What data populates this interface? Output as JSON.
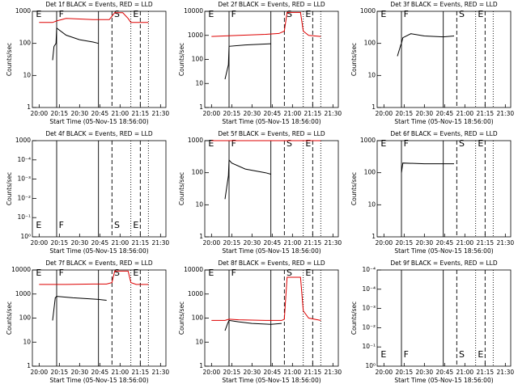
{
  "chart_data": [
    {
      "type": "line",
      "title": "Det 1f BLACK = Events, RED = LLD",
      "x_label": "Start Time (05-Nov-15 18:56:00)",
      "y_label": "Counts/sec",
      "log_y": true,
      "flag_position": "top",
      "xlim": [
        -5,
        94
      ],
      "ylim": [
        1,
        1000
      ],
      "xticks": [
        {
          "value": 0,
          "label": "20:00"
        },
        {
          "value": 15,
          "label": "20:15"
        },
        {
          "value": 30,
          "label": "20:30"
        },
        {
          "value": 45,
          "label": "20:45"
        },
        {
          "value": 60,
          "label": "21:00"
        },
        {
          "value": 75,
          "label": "21:15"
        },
        {
          "value": 90,
          "label": "21:30"
        }
      ],
      "yticks": [
        1,
        10,
        100,
        1000
      ],
      "series": [
        {
          "name": "Events",
          "color": "#000000",
          "x": [
            10,
            11,
            12.5,
            13,
            20,
            30,
            40,
            44
          ],
          "values": [
            30,
            80,
            100,
            300,
            180,
            130,
            110,
            100
          ]
        },
        {
          "name": "LLD",
          "color": "#dd0000",
          "x": [
            0,
            10,
            13,
            20,
            40,
            52,
            54,
            56,
            62,
            66,
            68,
            72,
            81
          ],
          "values": [
            450,
            450,
            500,
            600,
            550,
            550,
            700,
            900,
            900,
            600,
            450,
            450,
            450
          ]
        }
      ]
    },
    {
      "type": "line",
      "title": "Det 2f BLACK = Events, RED = LLD",
      "x_label": "Start Time (05-Nov-15 18:56:00)",
      "y_label": "Counts/sec",
      "log_y": true,
      "flag_position": "top",
      "xlim": [
        -5,
        94
      ],
      "ylim": [
        1,
        10000
      ],
      "xticks": [
        {
          "value": 0,
          "label": "20:00"
        },
        {
          "value": 15,
          "label": "20:15"
        },
        {
          "value": 30,
          "label": "20:30"
        },
        {
          "value": 45,
          "label": "20:45"
        },
        {
          "value": 60,
          "label": "21:00"
        },
        {
          "value": 75,
          "label": "21:15"
        },
        {
          "value": 90,
          "label": "21:30"
        }
      ],
      "yticks": [
        1,
        10,
        100,
        1000,
        10000
      ],
      "series": [
        {
          "name": "Events",
          "color": "#000000",
          "x": [
            10,
            12.5,
            13,
            25,
            44
          ],
          "values": [
            15,
            60,
            350,
            400,
            450
          ]
        },
        {
          "name": "LLD",
          "color": "#dd0000",
          "x": [
            0,
            20,
            40,
            50,
            54,
            56,
            62,
            66,
            68,
            72,
            81
          ],
          "values": [
            900,
            1000,
            1100,
            1200,
            1500,
            9000,
            9000,
            9000,
            1500,
            1000,
            900
          ]
        }
      ]
    },
    {
      "type": "line",
      "title": "Det 3f BLACK = Events, RED = LLD",
      "x_label": "Start Time (05-Nov-15 18:56:00)",
      "y_label": "Counts/sec",
      "log_y": true,
      "flag_position": "top",
      "xlim": [
        -5,
        94
      ],
      "ylim": [
        1,
        1000
      ],
      "xticks": [
        {
          "value": 0,
          "label": "20:00"
        },
        {
          "value": 15,
          "label": "20:15"
        },
        {
          "value": 30,
          "label": "20:30"
        },
        {
          "value": 45,
          "label": "20:45"
        },
        {
          "value": 60,
          "label": "21:00"
        },
        {
          "value": 75,
          "label": "21:15"
        },
        {
          "value": 90,
          "label": "21:30"
        }
      ],
      "yticks": [
        1,
        10,
        100,
        1000
      ],
      "series": [
        {
          "name": "Events",
          "color": "#000000",
          "x": [
            10,
            12.5,
            13,
            14,
            20,
            30,
            44,
            52
          ],
          "values": [
            40,
            90,
            100,
            150,
            200,
            170,
            160,
            170
          ]
        }
      ]
    },
    {
      "type": "line",
      "title": "Det 4f BLACK = Events, RED = LLD",
      "x_label": "Start Time (05-Nov-15 18:56:00)",
      "y_label": "Counts/sec",
      "log_y": false,
      "flag_position": "bottom",
      "xlim": [
        -5,
        94
      ],
      "ylim": [
        0,
        5
      ],
      "xticks": [
        {
          "value": 0,
          "label": "20:00"
        },
        {
          "value": 15,
          "label": "20:15"
        },
        {
          "value": 30,
          "label": "20:30"
        },
        {
          "value": 45,
          "label": "20:45"
        },
        {
          "value": 60,
          "label": "21:00"
        },
        {
          "value": 75,
          "label": "21:15"
        },
        {
          "value": 90,
          "label": "21:30"
        }
      ],
      "yticks": [
        {
          "value": 0,
          "label": "10⁰"
        },
        {
          "value": 1,
          "label": "10⁻¹"
        },
        {
          "value": 2,
          "label": "10⁻²"
        },
        {
          "value": 3,
          "label": "10⁻³"
        },
        {
          "value": 4,
          "label": "10⁻⁴"
        },
        {
          "value": 5,
          "label": "1000"
        }
      ],
      "series": []
    },
    {
      "type": "line",
      "title": "Det 5f BLACK = Events, RED = LLD",
      "x_label": "Start Time (05-Nov-15 18:56:00)",
      "y_label": "Counts/sec",
      "log_y": true,
      "flag_position": "top",
      "xlim": [
        -5,
        94
      ],
      "ylim": [
        1,
        1000
      ],
      "xticks": [
        {
          "value": 0,
          "label": "20:00"
        },
        {
          "value": 15,
          "label": "20:15"
        },
        {
          "value": 30,
          "label": "20:30"
        },
        {
          "value": 45,
          "label": "20:45"
        },
        {
          "value": 60,
          "label": "21:00"
        },
        {
          "value": 75,
          "label": "21:15"
        },
        {
          "value": 90,
          "label": "21:30"
        }
      ],
      "yticks": [
        1,
        10,
        100,
        1000
      ],
      "series": [
        {
          "name": "Events",
          "color": "#000000",
          "x": [
            10,
            12.5,
            13,
            15,
            25,
            40,
            44
          ],
          "values": [
            15,
            80,
            250,
            200,
            130,
            100,
            90
          ]
        },
        {
          "name": "LLD",
          "color": "#dd0000",
          "x": [
            0,
            10,
            20,
            40,
            52,
            56,
            66,
            70,
            81
          ],
          "values": [
            1000,
            1000,
            1000,
            1000,
            1000,
            1000,
            1000,
            1000,
            1000
          ]
        }
      ]
    },
    {
      "type": "line",
      "title": "Det 6f BLACK = Events, RED = LLD",
      "x_label": "Start Time (05-Nov-15 18:56:00)",
      "y_label": "Counts/sec",
      "log_y": true,
      "flag_position": "top",
      "xlim": [
        -5,
        94
      ],
      "ylim": [
        1,
        1000
      ],
      "xticks": [
        {
          "value": 0,
          "label": "20:00"
        },
        {
          "value": 15,
          "label": "20:15"
        },
        {
          "value": 30,
          "label": "20:30"
        },
        {
          "value": 45,
          "label": "20:45"
        },
        {
          "value": 60,
          "label": "21:00"
        },
        {
          "value": 75,
          "label": "21:15"
        },
        {
          "value": 90,
          "label": "21:30"
        }
      ],
      "yticks": [
        1,
        10,
        100,
        1000
      ],
      "series": [
        {
          "name": "Events",
          "color": "#000000",
          "x": [
            13,
            14,
            30,
            44,
            52
          ],
          "values": [
            100,
            200,
            190,
            190,
            190
          ]
        }
      ]
    },
    {
      "type": "line",
      "title": "Det 7f BLACK = Events, RED = LLD",
      "x_label": "Start Time (05-Nov-15 18:56:00)",
      "y_label": "Counts/sec",
      "log_y": true,
      "flag_position": "top",
      "xlim": [
        -5,
        94
      ],
      "ylim": [
        1,
        10000
      ],
      "xticks": [
        {
          "value": 0,
          "label": "20:00"
        },
        {
          "value": 15,
          "label": "20:15"
        },
        {
          "value": 30,
          "label": "20:30"
        },
        {
          "value": 45,
          "label": "20:45"
        },
        {
          "value": 60,
          "label": "21:00"
        },
        {
          "value": 75,
          "label": "21:15"
        },
        {
          "value": 90,
          "label": "21:30"
        }
      ],
      "yticks": [
        1,
        10,
        100,
        1000,
        10000
      ],
      "series": [
        {
          "name": "Events",
          "color": "#000000",
          "x": [
            10,
            12,
            13,
            25,
            44,
            50
          ],
          "values": [
            80,
            700,
            800,
            700,
            600,
            550
          ]
        },
        {
          "name": "LLD",
          "color": "#dd0000",
          "x": [
            0,
            20,
            40,
            50,
            54,
            56,
            62,
            66,
            68,
            72,
            81
          ],
          "values": [
            2500,
            2500,
            2600,
            2600,
            3000,
            9000,
            9000,
            9000,
            3000,
            2500,
            2500
          ]
        }
      ]
    },
    {
      "type": "line",
      "title": "Det 8f BLACK = Events, RED = LLD",
      "x_label": "Start Time (05-Nov-15 18:56:00)",
      "y_label": "Counts/sec",
      "log_y": true,
      "flag_position": "top",
      "xlim": [
        -5,
        94
      ],
      "ylim": [
        1,
        10000
      ],
      "xticks": [
        {
          "value": 0,
          "label": "20:00"
        },
        {
          "value": 15,
          "label": "20:15"
        },
        {
          "value": 30,
          "label": "20:30"
        },
        {
          "value": 45,
          "label": "20:45"
        },
        {
          "value": 60,
          "label": "21:00"
        },
        {
          "value": 75,
          "label": "21:15"
        },
        {
          "value": 90,
          "label": "21:30"
        }
      ],
      "yticks": [
        1,
        10,
        100,
        1000,
        10000
      ],
      "series": [
        {
          "name": "Events",
          "color": "#000000",
          "x": [
            10,
            12,
            13,
            20,
            30,
            44,
            52
          ],
          "values": [
            30,
            60,
            80,
            70,
            60,
            55,
            60
          ]
        },
        {
          "name": "LLD",
          "color": "#dd0000",
          "x": [
            0,
            10,
            13,
            20,
            40,
            52,
            54,
            56,
            62,
            66,
            68,
            72,
            81
          ],
          "values": [
            80,
            80,
            90,
            85,
            80,
            80,
            90,
            5000,
            5000,
            5000,
            200,
            100,
            80
          ]
        }
      ]
    },
    {
      "type": "line",
      "title": "Det 9f BLACK = Events, RED = LLD",
      "x_label": "Start Time (05-Nov-15 18:56:00)",
      "y_label": "Counts/sec",
      "log_y": false,
      "flag_position": "bottom",
      "xlim": [
        -5,
        94
      ],
      "ylim": [
        0,
        5
      ],
      "xticks": [
        {
          "value": 0,
          "label": "20:00"
        },
        {
          "value": 15,
          "label": "20:15"
        },
        {
          "value": 30,
          "label": "20:30"
        },
        {
          "value": 45,
          "label": "20:45"
        },
        {
          "value": 60,
          "label": "21:00"
        },
        {
          "value": 75,
          "label": "21:15"
        },
        {
          "value": 90,
          "label": "21:30"
        }
      ],
      "yticks": [
        {
          "value": 0,
          "label": "10⁰"
        },
        {
          "value": 1,
          "label": "10⁻¹"
        },
        {
          "value": 2,
          "label": "10⁻²"
        },
        {
          "value": 3,
          "label": "10⁻³"
        },
        {
          "value": 4,
          "label": "10⁻⁴"
        },
        {
          "value": 5,
          "label": "10⁻⁴"
        }
      ],
      "series": []
    }
  ],
  "time_markers": {
    "lines": [
      {
        "x": 13,
        "style": "solid"
      },
      {
        "x": 44,
        "style": "solid"
      },
      {
        "x": 54,
        "style": "dashed"
      },
      {
        "x": 68,
        "style": "dotted"
      },
      {
        "x": 75,
        "style": "dashed"
      },
      {
        "x": 81,
        "style": "dotted"
      }
    ],
    "flags": [
      {
        "x": -3,
        "label": "E"
      },
      {
        "x": 14,
        "label": "F"
      },
      {
        "x": 55,
        "label": "S"
      },
      {
        "x": 69,
        "label": "E"
      }
    ]
  }
}
